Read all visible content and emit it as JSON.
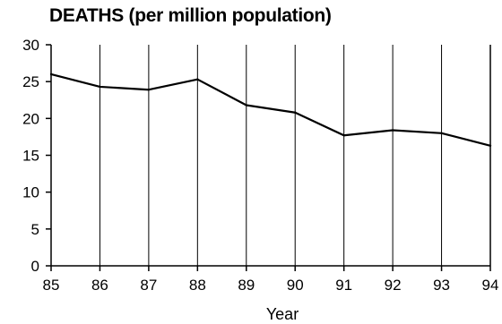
{
  "chart_data": {
    "type": "line",
    "title": "DEATHS (per million population)",
    "xlabel": "Year",
    "ylabel": "",
    "x": [
      "85",
      "86",
      "87",
      "88",
      "89",
      "90",
      "91",
      "92",
      "93",
      "94"
    ],
    "series": [
      {
        "values": [
          26.0,
          24.3,
          23.9,
          25.3,
          21.8,
          20.8,
          17.7,
          18.4,
          18.0,
          16.3
        ]
      }
    ],
    "ylim": [
      0,
      30
    ],
    "yticks": [
      "0",
      "5",
      "10",
      "15",
      "20",
      "25",
      "30"
    ],
    "grid": "vertical",
    "colors": {
      "line": "#000000",
      "grid": "#000000"
    }
  }
}
